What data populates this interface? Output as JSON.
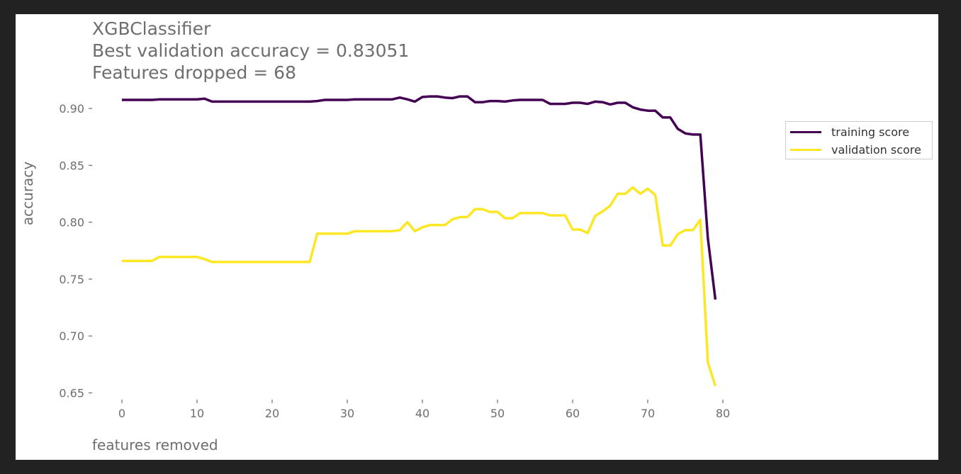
{
  "window": {
    "background": "#222222",
    "panel_background": "#ffffff"
  },
  "chart_data": {
    "type": "line",
    "title_lines": [
      "XGBClassifier",
      "Best validation accuracy = 0.83051",
      "Features dropped = 68"
    ],
    "xlabel": "features removed",
    "ylabel": "accuracy",
    "xlim": [
      -2,
      80
    ],
    "ylim": [
      0.645,
      0.92
    ],
    "xticks": [
      0,
      10,
      20,
      30,
      40,
      50,
      60,
      70,
      80
    ],
    "yticks": [
      0.65,
      0.7,
      0.75,
      0.8,
      0.85,
      0.9
    ],
    "ytick_labels": [
      "0.65",
      "0.70",
      "0.75",
      "0.80",
      "0.85",
      "0.90"
    ],
    "grid": false,
    "legend_position": "outside right",
    "series": [
      {
        "name": "training score",
        "color": "#440154",
        "x": [
          0,
          1,
          2,
          3,
          4,
          5,
          6,
          7,
          8,
          9,
          10,
          11,
          12,
          13,
          14,
          15,
          16,
          17,
          18,
          19,
          20,
          21,
          22,
          23,
          24,
          25,
          26,
          27,
          28,
          29,
          30,
          31,
          32,
          33,
          34,
          35,
          36,
          37,
          38,
          39,
          40,
          41,
          42,
          43,
          44,
          45,
          46,
          47,
          48,
          49,
          50,
          51,
          52,
          53,
          54,
          55,
          56,
          57,
          58,
          59,
          60,
          61,
          62,
          63,
          64,
          65,
          66,
          67,
          68,
          69,
          70,
          71,
          72,
          73,
          74,
          75,
          76,
          77,
          78,
          79
        ],
        "values": [
          0.9075,
          0.9075,
          0.9075,
          0.9075,
          0.9075,
          0.908,
          0.908,
          0.908,
          0.908,
          0.908,
          0.908,
          0.9085,
          0.906,
          0.906,
          0.906,
          0.906,
          0.906,
          0.906,
          0.906,
          0.906,
          0.906,
          0.906,
          0.906,
          0.906,
          0.906,
          0.906,
          0.9065,
          0.9075,
          0.9075,
          0.9075,
          0.9075,
          0.908,
          0.908,
          0.908,
          0.908,
          0.908,
          0.908,
          0.9095,
          0.908,
          0.906,
          0.91,
          0.9105,
          0.9105,
          0.9095,
          0.909,
          0.9105,
          0.9105,
          0.9055,
          0.9055,
          0.9065,
          0.9065,
          0.906,
          0.907,
          0.9075,
          0.9075,
          0.9075,
          0.9075,
          0.904,
          0.904,
          0.904,
          0.905,
          0.905,
          0.904,
          0.906,
          0.9055,
          0.9035,
          0.905,
          0.905,
          0.901,
          0.899,
          0.898,
          0.898,
          0.892,
          0.892,
          0.882,
          0.878,
          0.877,
          0.877,
          0.786,
          0.732
        ]
      },
      {
        "name": "validation score",
        "color": "#fde725",
        "x": [
          0,
          1,
          2,
          3,
          4,
          5,
          6,
          7,
          8,
          9,
          10,
          11,
          12,
          13,
          14,
          15,
          16,
          17,
          18,
          19,
          20,
          21,
          22,
          23,
          24,
          25,
          26,
          27,
          28,
          29,
          30,
          31,
          32,
          33,
          34,
          35,
          36,
          37,
          38,
          39,
          40,
          41,
          42,
          43,
          44,
          45,
          46,
          47,
          48,
          49,
          50,
          51,
          52,
          53,
          54,
          55,
          56,
          57,
          58,
          59,
          60,
          61,
          62,
          63,
          64,
          65,
          66,
          67,
          68,
          69,
          70,
          71,
          72,
          73,
          74,
          75,
          76,
          77,
          78,
          79
        ],
        "values": [
          0.766,
          0.766,
          0.766,
          0.766,
          0.766,
          0.7695,
          0.7695,
          0.7695,
          0.7695,
          0.7695,
          0.7695,
          0.7675,
          0.765,
          0.765,
          0.765,
          0.765,
          0.765,
          0.765,
          0.765,
          0.765,
          0.765,
          0.765,
          0.765,
          0.765,
          0.765,
          0.765,
          0.79,
          0.79,
          0.79,
          0.79,
          0.79,
          0.792,
          0.792,
          0.792,
          0.792,
          0.792,
          0.792,
          0.793,
          0.8,
          0.792,
          0.7955,
          0.7975,
          0.7975,
          0.7975,
          0.8025,
          0.8045,
          0.8045,
          0.8115,
          0.8115,
          0.809,
          0.809,
          0.8035,
          0.8035,
          0.808,
          0.808,
          0.808,
          0.808,
          0.806,
          0.806,
          0.806,
          0.7935,
          0.7935,
          0.7905,
          0.8055,
          0.8095,
          0.8145,
          0.825,
          0.825,
          0.8305,
          0.825,
          0.8295,
          0.824,
          0.7795,
          0.7795,
          0.7895,
          0.793,
          0.793,
          0.802,
          0.677,
          0.656
        ]
      }
    ]
  }
}
